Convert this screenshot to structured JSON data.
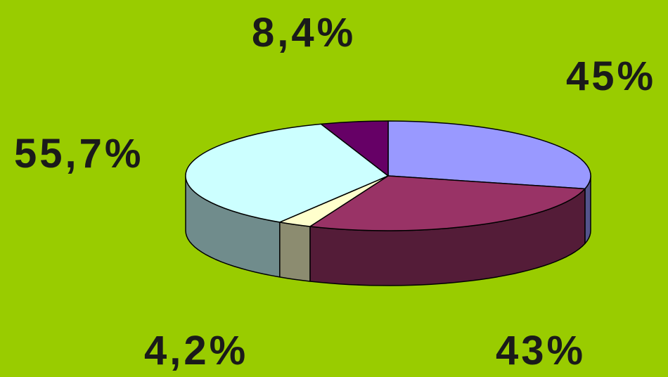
{
  "chart_data": {
    "type": "pie",
    "style": "3d",
    "title": "",
    "slices": [
      {
        "label": "45%",
        "value": 45,
        "color": "#9999ff"
      },
      {
        "label": "43%",
        "value": 43,
        "color": "#993366"
      },
      {
        "label": "4,2%",
        "value": 4.2,
        "color": "#ffffcc"
      },
      {
        "label": "55,7%",
        "value": 55.7,
        "color": "#ccffff"
      },
      {
        "label": "8,4%",
        "value": 8.4,
        "color": "#660066"
      }
    ],
    "colors": {
      "background": "#99cc00"
    }
  }
}
